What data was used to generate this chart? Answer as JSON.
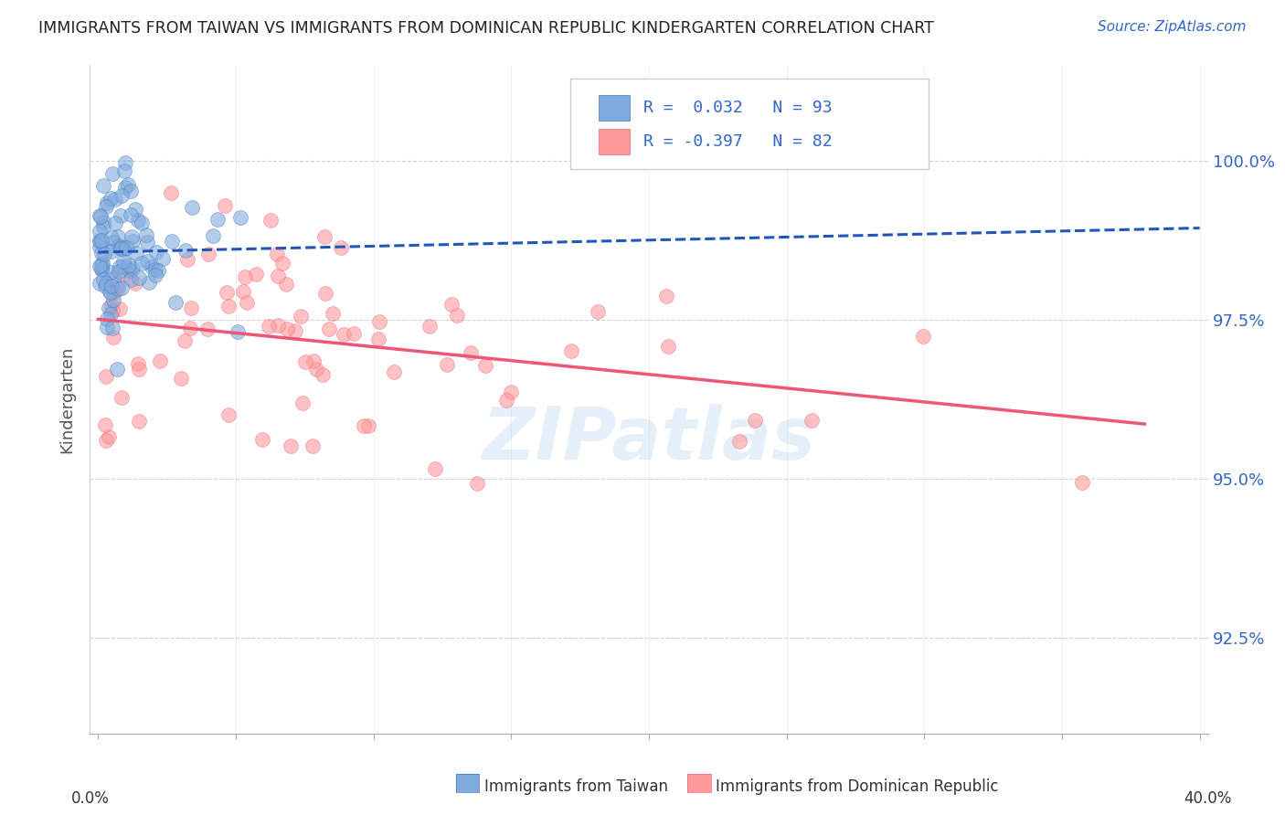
{
  "title": "IMMIGRANTS FROM TAIWAN VS IMMIGRANTS FROM DOMINICAN REPUBLIC KINDERGARTEN CORRELATION CHART",
  "source_text": "Source: ZipAtlas.com",
  "ylabel": "Kindergarten",
  "y_tick_values": [
    92.5,
    95.0,
    97.5,
    100.0
  ],
  "x_min": 0.0,
  "x_max": 40.0,
  "y_min": 91.0,
  "y_max": 101.5,
  "legend_r_blue": "R =  0.032",
  "legend_n_blue": "N = 93",
  "legend_r_pink": "R = -0.397",
  "legend_n_pink": "N = 82",
  "watermark": "ZIPatlas",
  "blue_color": "#7FAADD",
  "pink_color": "#FF9999",
  "blue_edge_color": "#4477BB",
  "pink_edge_color": "#EE6688",
  "trend_blue_color": "#2255BB",
  "trend_pink_color": "#EE5577",
  "axis_label_color": "#3366CC",
  "title_color": "#222222",
  "grid_color": "#CCCCCC",
  "legend_text_color": "#3366CC"
}
